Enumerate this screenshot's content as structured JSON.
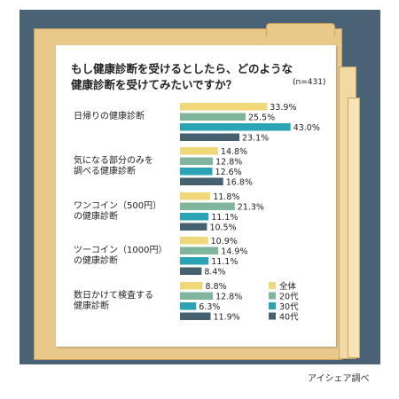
{
  "title_line1": "もし健康診断を受けるとしたら、どのような",
  "title_line2": "健康診断を受けてみたいですか？",
  "sample_note": "(n=431)",
  "credit": "アイシェア調べ",
  "colors": {
    "panel": "#4a6275",
    "folder": "#e8c98a",
    "series": [
      "#efd77a",
      "#7fb59c",
      "#2aa3b4",
      "#45606e"
    ]
  },
  "chart_data": {
    "type": "bar",
    "orientation": "horizontal",
    "categories": [
      [
        "日帰りの健康診断"
      ],
      [
        "気になる部分のみを",
        "調べる健康診断"
      ],
      [
        "ワンコイン（500円）",
        "の健康診断"
      ],
      [
        "ツーコイン（1000円）",
        "の健康診断"
      ],
      [
        "数日かけて検査する",
        "健康診断"
      ]
    ],
    "series": [
      {
        "name": "全体",
        "values": [
          33.9,
          14.8,
          11.8,
          10.9,
          8.8
        ]
      },
      {
        "name": "20代",
        "values": [
          25.5,
          12.8,
          21.3,
          14.9,
          12.8
        ]
      },
      {
        "name": "30代",
        "values": [
          43.0,
          12.6,
          11.1,
          11.1,
          6.3
        ]
      },
      {
        "name": "40代",
        "values": [
          23.1,
          16.8,
          10.5,
          8.4,
          11.9
        ]
      }
    ],
    "value_labels": [
      [
        "33.9%",
        "14.8%",
        "11.8%",
        "10.9%",
        "8.8%"
      ],
      [
        "25.5%",
        "12.8%",
        "21.3%",
        "14.9%",
        "12.8%"
      ],
      [
        "43.0%",
        "12.6%",
        "11.1%",
        "11.1%",
        "6.3%"
      ],
      [
        "23.1%",
        "16.8%",
        "10.5%",
        "8.4%",
        "11.9%"
      ]
    ],
    "legend_position": "bottom-right"
  }
}
